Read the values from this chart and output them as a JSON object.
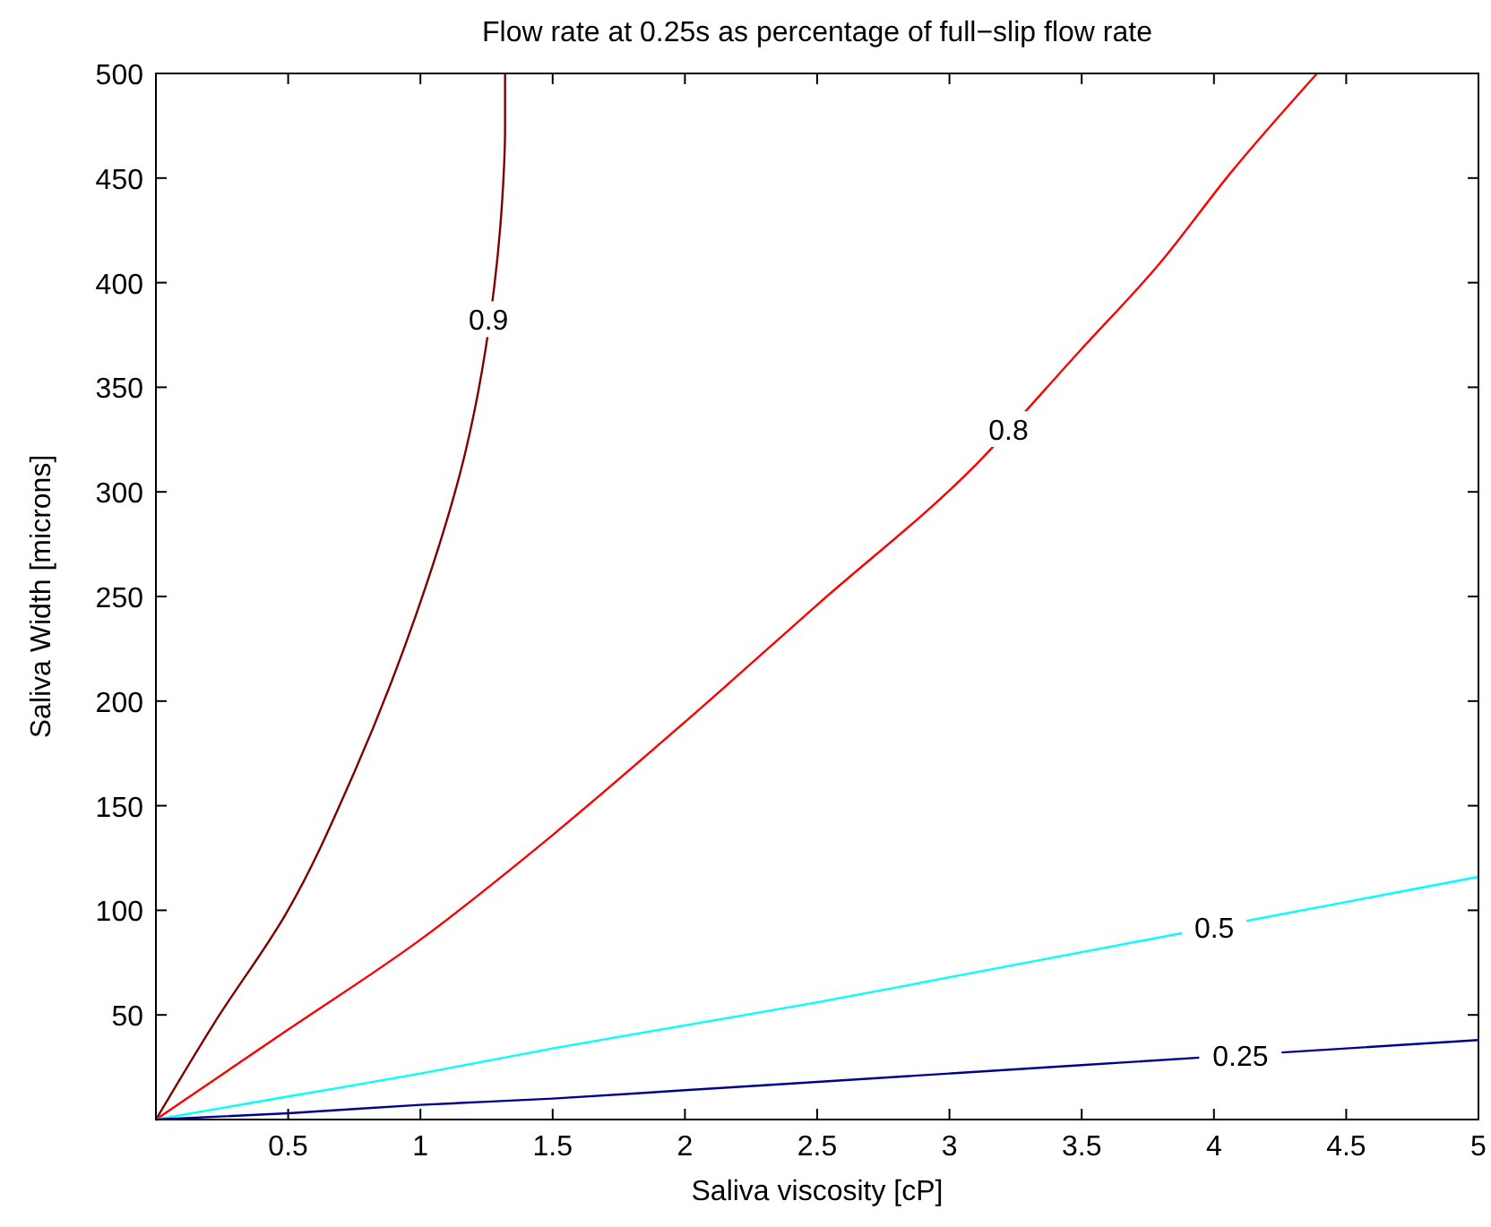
{
  "chart_data": {
    "type": "line",
    "title": "Flow rate at 0.25s as percentage of full−slip flow rate",
    "xlabel": "Saliva viscosity [cP]",
    "ylabel": "Saliva Width [microns]",
    "xlim": [
      0,
      5
    ],
    "ylim": [
      0,
      500
    ],
    "xticks": [
      0.5,
      1,
      1.5,
      2,
      2.5,
      3,
      3.5,
      4,
      4.5,
      5
    ],
    "yticks": [
      50,
      100,
      150,
      200,
      250,
      300,
      350,
      400,
      450,
      500
    ],
    "grid": false,
    "marker": "none",
    "line_style": "solid",
    "series": [
      {
        "name": "0.9",
        "color": "#800000",
        "x": [
          0,
          0.22,
          0.49,
          0.75,
          0.98,
          1.17,
          1.28,
          1.31,
          1.32,
          1.32
        ],
        "values": [
          0,
          46,
          98,
          166,
          240,
          319,
          399,
          441,
          474,
          500
        ]
      },
      {
        "name": "0.8",
        "color": "#ff0000",
        "x": [
          0,
          0.5,
          1,
          1.5,
          2,
          2.5,
          3.1,
          3.49,
          3.8,
          4.06,
          4.39
        ],
        "values": [
          0,
          43,
          86,
          136,
          190,
          246,
          313,
          367,
          410,
          452,
          500
        ]
      },
      {
        "name": "0.5",
        "color": "#00ffff",
        "x": [
          0,
          0.5,
          1,
          1.5,
          2,
          2.5,
          3,
          3.5,
          4.5,
          5
        ],
        "values": [
          0,
          11,
          22,
          34,
          45,
          56,
          68,
          80,
          104,
          116
        ]
      },
      {
        "name": "0.25",
        "color": "#00008f",
        "x": [
          0,
          0.5,
          1,
          1.5,
          2,
          2.5,
          3,
          3.5,
          4.5,
          5
        ],
        "values": [
          0,
          3,
          7,
          10,
          14,
          18,
          22,
          26,
          34,
          38
        ]
      }
    ]
  }
}
